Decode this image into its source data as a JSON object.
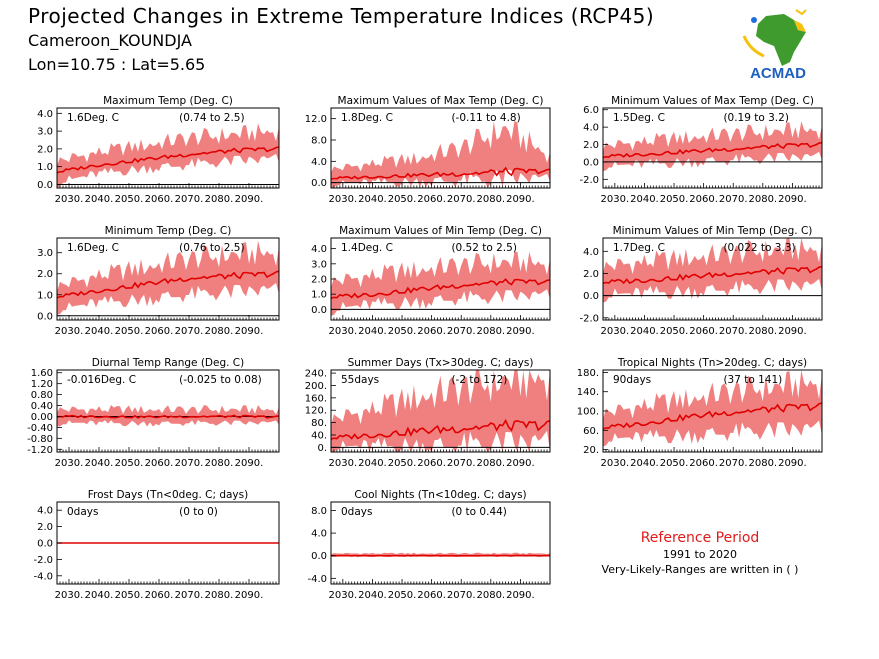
{
  "header": {
    "title": "Projected Changes in Extreme Temperature Indices (RCP45)",
    "location": "Cameroon_KOUNDJA",
    "coords": "Lon=10.75 : Lat=5.65"
  },
  "logo": {
    "text": "ACMAD",
    "icon": "africa-map-logo"
  },
  "reference": {
    "title": "Reference Period",
    "years": "1991 to 2020",
    "note": "Very-Likely-Ranges are written in ( )"
  },
  "colors": {
    "band": "#f08080",
    "line": "#e00000",
    "zero": "#000000",
    "ref_title": "#e01a1a"
  },
  "chart_data": [
    {
      "type": "area",
      "title": "Maximum Temp (Deg. C)",
      "stat": "1.6Deg. C",
      "range": "(0.74 to 2.5)",
      "x_ticks": [
        "2030.",
        "2040.",
        "2050.",
        "2060.",
        "2070.",
        "2080.",
        "2090."
      ],
      "y_ticks": [
        "0.0",
        "1.0",
        "2.0",
        "3.0",
        "4.0"
      ],
      "ylim": [
        -0.2,
        4.3
      ],
      "series": [
        {
          "x": [
            2026,
            2040,
            2055,
            2070,
            2085,
            2100
          ],
          "median": [
            0.7,
            1.1,
            1.4,
            1.7,
            1.9,
            2.0
          ],
          "low": [
            0.1,
            0.6,
            0.9,
            1.1,
            1.3,
            1.4
          ],
          "high": [
            1.3,
            1.8,
            2.2,
            2.6,
            2.8,
            3.0
          ]
        }
      ]
    },
    {
      "type": "area",
      "title": "Maximum Values of Max Temp (Deg. C)",
      "stat": "1.8Deg. C",
      "range": "(-0.11 to 4.8)",
      "x_ticks": [
        "2030.",
        "2040.",
        "2050.",
        "2060.",
        "2070.",
        "2080.",
        "2090."
      ],
      "y_ticks": [
        "0.0",
        "4.0",
        "8.0",
        "12.0"
      ],
      "ylim": [
        -1,
        14
      ],
      "series": [
        {
          "x": [
            2026,
            2040,
            2055,
            2070,
            2085,
            2100
          ],
          "median": [
            0.8,
            1.1,
            1.4,
            1.7,
            2.0,
            2.2
          ],
          "low": [
            -0.3,
            0.0,
            0.2,
            0.4,
            0.6,
            0.7
          ],
          "high": [
            2.5,
            3.5,
            4.5,
            6.5,
            10.0,
            5.0
          ]
        }
      ]
    },
    {
      "type": "area",
      "title": "Minimum Values of Max Temp (Deg. C)",
      "stat": "1.5Deg. C",
      "range": "(0.19 to 3.2)",
      "x_ticks": [
        "2030.",
        "2040.",
        "2050.",
        "2060.",
        "2070.",
        "2080.",
        "2090."
      ],
      "y_ticks": [
        "-2.0",
        "0.0",
        "2.0",
        "4.0",
        "6.0"
      ],
      "ylim": [
        -3,
        6.2
      ],
      "series": [
        {
          "x": [
            2026,
            2040,
            2055,
            2070,
            2085,
            2100
          ],
          "median": [
            0.6,
            0.9,
            1.2,
            1.5,
            1.8,
            2.0
          ],
          "low": [
            -0.5,
            -0.3,
            0.0,
            0.2,
            0.4,
            0.5
          ],
          "high": [
            1.8,
            2.3,
            2.8,
            3.2,
            3.5,
            3.7
          ]
        }
      ]
    },
    {
      "type": "area",
      "title": "Minimum Temp (Deg. C)",
      "stat": "1.6Deg. C",
      "range": "(0.76 to 2.5)",
      "x_ticks": [
        "2030.",
        "2040.",
        "2050.",
        "2060.",
        "2070.",
        "2080.",
        "2090."
      ],
      "y_ticks": [
        "0.0",
        "1.0",
        "2.0",
        "3.0"
      ],
      "ylim": [
        -0.2,
        3.7
      ],
      "series": [
        {
          "x": [
            2026,
            2040,
            2055,
            2070,
            2085,
            2100
          ],
          "median": [
            0.9,
            1.2,
            1.5,
            1.8,
            1.9,
            2.0
          ],
          "low": [
            0.3,
            0.6,
            0.8,
            1.0,
            1.1,
            1.2
          ],
          "high": [
            1.4,
            1.9,
            2.3,
            2.7,
            2.9,
            3.0
          ]
        }
      ]
    },
    {
      "type": "area",
      "title": "Maximum Values of Min Temp (Deg. C)",
      "stat": "1.4Deg. C",
      "range": "(0.52 to 2.5)",
      "x_ticks": [
        "2030.",
        "2040.",
        "2050.",
        "2060.",
        "2070.",
        "2080.",
        "2090."
      ],
      "y_ticks": [
        "0.0",
        "1.0",
        "2.0",
        "3.0",
        "4.0"
      ],
      "ylim": [
        -0.7,
        4.7
      ],
      "series": [
        {
          "x": [
            2026,
            2040,
            2055,
            2070,
            2085,
            2100
          ],
          "median": [
            0.8,
            1.0,
            1.3,
            1.6,
            1.8,
            1.8
          ],
          "low": [
            0.0,
            0.3,
            0.5,
            0.7,
            0.8,
            0.9
          ],
          "high": [
            1.8,
            2.2,
            2.6,
            2.9,
            3.1,
            3.0
          ]
        }
      ]
    },
    {
      "type": "area",
      "title": "Minimum Values of Min Temp (Deg. C)",
      "stat": "1.7Deg. C",
      "range": "(0.022 to 3.3)",
      "x_ticks": [
        "2030.",
        "2040.",
        "2050.",
        "2060.",
        "2070.",
        "2080.",
        "2090."
      ],
      "y_ticks": [
        "-2.0",
        "0.0",
        "2.0",
        "4.0"
      ],
      "ylim": [
        -2.2,
        5.2
      ],
      "series": [
        {
          "x": [
            2026,
            2040,
            2055,
            2070,
            2085,
            2100
          ],
          "median": [
            1.2,
            1.4,
            1.7,
            2.0,
            2.2,
            2.4
          ],
          "low": [
            0.0,
            0.2,
            0.4,
            0.6,
            0.8,
            0.8
          ],
          "high": [
            2.6,
            3.0,
            3.4,
            3.8,
            4.1,
            4.2
          ]
        }
      ]
    },
    {
      "type": "area",
      "title": "Diurnal Temp Range (Deg. C)",
      "stat": "-0.016Deg. C",
      "range": "(-0.025 to 0.08)",
      "x_ticks": [
        "2030.",
        "2040.",
        "2050.",
        "2060.",
        "2070.",
        "2080.",
        "2090."
      ],
      "y_ticks": [
        "-1.20",
        "-0.80",
        "-0.40",
        "0.00",
        "0.40",
        "0.80",
        "1.20",
        "1.60"
      ],
      "ylim": [
        -1.3,
        1.7
      ],
      "series": [
        {
          "x": [
            2026,
            2040,
            2055,
            2070,
            2085,
            2100
          ],
          "median": [
            0.0,
            0.0,
            -0.02,
            0.0,
            0.0,
            -0.02
          ],
          "low": [
            -0.25,
            -0.25,
            -0.25,
            -0.25,
            -0.25,
            -0.25
          ],
          "high": [
            0.25,
            0.25,
            0.25,
            0.25,
            0.25,
            0.25
          ]
        }
      ]
    },
    {
      "type": "area",
      "title": "Summer Days (Tx>30deg. C; days)",
      "stat": "55days",
      "range": "(-2 to 172)",
      "x_ticks": [
        "2030.",
        "2040.",
        "2050.",
        "2060.",
        "2070.",
        "2080.",
        "2090."
      ],
      "y_ticks": [
        "0.",
        "40.",
        "80.",
        "120.",
        "160.",
        "200.",
        "240."
      ],
      "ylim": [
        -15,
        250
      ],
      "series": [
        {
          "x": [
            2026,
            2040,
            2055,
            2070,
            2085,
            2100
          ],
          "median": [
            30,
            40,
            52,
            62,
            70,
            72
          ],
          "low": [
            0,
            2,
            4,
            6,
            8,
            10
          ],
          "high": [
            90,
            120,
            160,
            190,
            215,
            225
          ]
        }
      ]
    },
    {
      "type": "area",
      "title": "Tropical Nights (Tn>20deg. C; days)",
      "stat": "90days",
      "range": "(37 to 141)",
      "x_ticks": [
        "2030.",
        "2040.",
        "2050.",
        "2060.",
        "2070.",
        "2080.",
        "2090."
      ],
      "y_ticks": [
        "20.",
        "60.",
        "100.",
        "140.",
        "180."
      ],
      "ylim": [
        15,
        185
      ],
      "series": [
        {
          "x": [
            2026,
            2040,
            2055,
            2070,
            2085,
            2100
          ],
          "median": [
            65,
            75,
            88,
            98,
            105,
            110
          ],
          "low": [
            40,
            45,
            50,
            55,
            58,
            60
          ],
          "high": [
            95,
            110,
            125,
            140,
            150,
            160
          ]
        }
      ]
    },
    {
      "type": "area",
      "title": "Frost Days (Tn<0deg. C; days)",
      "stat": "0days",
      "range": "(0 to 0)",
      "x_ticks": [
        "2030.",
        "2040.",
        "2050.",
        "2060.",
        "2070.",
        "2080.",
        "2090."
      ],
      "y_ticks": [
        "-4.0",
        "-2.0",
        "0.0",
        "2.0",
        "4.0"
      ],
      "ylim": [
        -5,
        5
      ],
      "series": [
        {
          "x": [
            2026,
            2100
          ],
          "median": [
            0,
            0
          ],
          "low": [
            0,
            0
          ],
          "high": [
            0,
            0
          ]
        }
      ]
    },
    {
      "type": "area",
      "title": "Cool Nights (Tn<10deg. C; days)",
      "stat": "0days",
      "range": "(0 to 0.44)",
      "x_ticks": [
        "2030.",
        "2040.",
        "2050.",
        "2060.",
        "2070.",
        "2080.",
        "2090."
      ],
      "y_ticks": [
        "-4.0",
        "0.0",
        "4.0",
        "8.0"
      ],
      "ylim": [
        -5,
        9.5
      ],
      "series": [
        {
          "x": [
            2026,
            2100
          ],
          "median": [
            0,
            0
          ],
          "low": [
            0,
            0
          ],
          "high": [
            0.4,
            0.4
          ]
        }
      ]
    }
  ]
}
